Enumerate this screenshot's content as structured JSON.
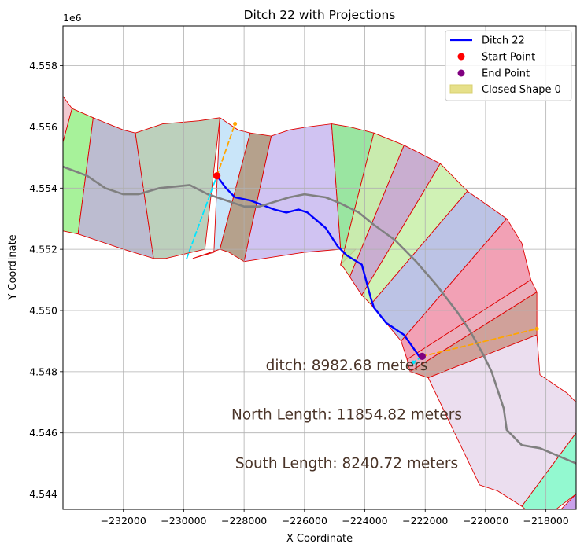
{
  "chart_data": {
    "type": "map-plot",
    "title": "Ditch 22 with Projections",
    "xlabel": "X Coordinate",
    "ylabel": "Y Coordinate",
    "y_offset_text": "1e6",
    "xlim": [
      -234000,
      -217000
    ],
    "ylim": [
      4543500,
      4559300
    ],
    "grid": true,
    "x_ticks": [
      -232000,
      -230000,
      -228000,
      -226000,
      -224000,
      -222000,
      -220000,
      -218000
    ],
    "x_tick_labels": [
      "−232000",
      "−230000",
      "−228000",
      "−226000",
      "−224000",
      "−222000",
      "−220000",
      "−218000"
    ],
    "y_ticks": [
      4544000,
      4546000,
      4548000,
      4550000,
      4552000,
      4554000,
      4556000,
      4558000
    ],
    "y_tick_labels": [
      "4.544",
      "4.546",
      "4.548",
      "4.550",
      "4.552",
      "4.554",
      "4.556",
      "4.558"
    ],
    "legend": {
      "placement": "top-right",
      "entries": [
        {
          "label": "Ditch 22",
          "kind": "line",
          "color": "#0000ff"
        },
        {
          "label": "Start Point",
          "kind": "dot",
          "color": "#ff0000"
        },
        {
          "label": "End Point",
          "kind": "dot",
          "color": "#800080"
        },
        {
          "label": "Closed Shape 0",
          "kind": "patch",
          "color": "#e6e08a"
        }
      ]
    },
    "annotations": [
      {
        "text": "ditch: 8982.68 meters",
        "x": -224600,
        "y": 4548200
      },
      {
        "text": "North Length: 11854.82 meters",
        "x": -224600,
        "y": 4546600
      },
      {
        "text": "South Length: 8240.72 meters",
        "x": -224600,
        "y": 4545000
      }
    ],
    "polygons": [
      {
        "color": "#f0c0c8",
        "points": [
          [
            -234000,
            4557000
          ],
          [
            -233700,
            4556600
          ],
          [
            -234000,
            4555500
          ]
        ]
      },
      {
        "color": "#98f088",
        "points": [
          [
            -233700,
            4556600
          ],
          [
            -233000,
            4556300
          ],
          [
            -233500,
            4552500
          ],
          [
            -234000,
            4552600
          ],
          [
            -234000,
            4555500
          ]
        ]
      },
      {
        "color": "#b0b0c8",
        "points": [
          [
            -233000,
            4556300
          ],
          [
            -232500,
            4556100
          ],
          [
            -232000,
            4555900
          ],
          [
            -231600,
            4555800
          ],
          [
            -231000,
            4551700
          ],
          [
            -232000,
            4552000
          ],
          [
            -233500,
            4552500
          ]
        ]
      },
      {
        "color": "#b0c8b0",
        "points": [
          [
            -231600,
            4555800
          ],
          [
            -230700,
            4556100
          ],
          [
            -229500,
            4556200
          ],
          [
            -228800,
            4556300
          ],
          [
            -229300,
            4552000
          ],
          [
            -230600,
            4551700
          ],
          [
            -231000,
            4551700
          ]
        ]
      },
      {
        "color": "#c0e0f8",
        "points": [
          [
            -228800,
            4556300
          ],
          [
            -228200,
            4555900
          ],
          [
            -227800,
            4555800
          ],
          [
            -228800,
            4552000
          ],
          [
            -229700,
            4551700
          ],
          [
            -229000,
            4551900
          ]
        ]
      },
      {
        "color": "#a89078",
        "points": [
          [
            -227800,
            4555800
          ],
          [
            -227100,
            4555700
          ],
          [
            -228000,
            4551600
          ],
          [
            -228500,
            4551900
          ],
          [
            -228800,
            4552000
          ]
        ]
      },
      {
        "color": "#c8b8f0",
        "points": [
          [
            -227100,
            4555700
          ],
          [
            -226500,
            4555900
          ],
          [
            -225900,
            4556000
          ],
          [
            -225100,
            4556100
          ],
          [
            -224800,
            4552000
          ],
          [
            -226000,
            4551900
          ],
          [
            -228000,
            4551600
          ]
        ]
      },
      {
        "color": "#88e090",
        "points": [
          [
            -225100,
            4556100
          ],
          [
            -224500,
            4556000
          ],
          [
            -223700,
            4555800
          ],
          [
            -224800,
            4551500
          ],
          [
            -224300,
            4552000
          ],
          [
            -224800,
            4552000
          ]
        ]
      },
      {
        "color": "#c0e8a0",
        "points": [
          [
            -223700,
            4555800
          ],
          [
            -222700,
            4555400
          ],
          [
            -224500,
            4551100
          ],
          [
            -224700,
            4551400
          ],
          [
            -224800,
            4551500
          ]
        ]
      },
      {
        "color": "#c0a0c8",
        "points": [
          [
            -222700,
            4555400
          ],
          [
            -221500,
            4554800
          ],
          [
            -224100,
            4550500
          ],
          [
            -224300,
            4550800
          ],
          [
            -224500,
            4551100
          ]
        ]
      },
      {
        "color": "#c8f0a8",
        "points": [
          [
            -221500,
            4554800
          ],
          [
            -220600,
            4553900
          ],
          [
            -223800,
            4550200
          ],
          [
            -224100,
            4550500
          ]
        ]
      },
      {
        "color": "#b0b8e0",
        "points": [
          [
            -220600,
            4553900
          ],
          [
            -219300,
            4553000
          ],
          [
            -222800,
            4549000
          ],
          [
            -223800,
            4550200
          ]
        ]
      },
      {
        "color": "#f090a8",
        "points": [
          [
            -219300,
            4553000
          ],
          [
            -218800,
            4552200
          ],
          [
            -218500,
            4551000
          ],
          [
            -222600,
            4548400
          ],
          [
            -222800,
            4549000
          ]
        ]
      },
      {
        "color": "#e8a0b0",
        "points": [
          [
            -218500,
            4551000
          ],
          [
            -218300,
            4550600
          ],
          [
            -222500,
            4548000
          ],
          [
            -222600,
            4548400
          ]
        ]
      },
      {
        "color": "#c89088",
        "points": [
          [
            -218300,
            4550600
          ],
          [
            -218300,
            4549200
          ],
          [
            -221900,
            4547800
          ],
          [
            -222500,
            4548000
          ]
        ]
      },
      {
        "color": "#e8d8ec",
        "points": [
          [
            -218300,
            4549200
          ],
          [
            -218200,
            4547900
          ],
          [
            -217300,
            4547300
          ],
          [
            -217000,
            4547000
          ],
          [
            -217000,
            4546000
          ],
          [
            -218800,
            4543600
          ],
          [
            -219600,
            4544100
          ],
          [
            -220200,
            4544300
          ],
          [
            -221900,
            4547800
          ]
        ]
      },
      {
        "color": "#80f8c8",
        "points": [
          [
            -217000,
            4546000
          ],
          [
            -217000,
            4544000
          ],
          [
            -218200,
            4543100
          ],
          [
            -218800,
            4543600
          ]
        ]
      },
      {
        "color": "#c090e8",
        "points": [
          [
            -217000,
            4544000
          ],
          [
            -217000,
            4543500
          ],
          [
            -217500,
            4543500
          ]
        ]
      }
    ],
    "series": [
      {
        "name": "Ditch 22",
        "color": "#0000ff",
        "x": [
          -228900,
          -228600,
          -228300,
          -227800,
          -227000,
          -226600,
          -226200,
          -225900,
          -225300,
          -224900,
          -224600,
          -224100,
          -223800,
          -223700,
          -223300,
          -222700,
          -222200
        ],
        "y": [
          4554400,
          4554000,
          4553700,
          4553600,
          4553300,
          4553200,
          4553300,
          4553200,
          4552700,
          4552100,
          4551800,
          4551500,
          4550400,
          4550100,
          4549600,
          4549200,
          4548500
        ]
      },
      {
        "name": "",
        "color": "#808080",
        "x": [
          -234000,
          -233200,
          -232600,
          -232000,
          -231500,
          -230800,
          -229800,
          -229200,
          -228600,
          -228000,
          -227500,
          -226500,
          -226000,
          -225300,
          -224800,
          -224200,
          -223700,
          -223000,
          -222300,
          -221600,
          -220900,
          -220500,
          -220100,
          -219800,
          -219600,
          -219400,
          -219300,
          -218800,
          -218200,
          -217000
        ],
        "y": [
          4554700,
          4554400,
          4554000,
          4553800,
          4553800,
          4554000,
          4554100,
          4553800,
          4553600,
          4553400,
          4553400,
          4553700,
          4553800,
          4553700,
          4553500,
          4553200,
          4552800,
          4552300,
          4551600,
          4550800,
          4549900,
          4549300,
          4548600,
          4548000,
          4547400,
          4546800,
          4546100,
          4545600,
          4545500,
          4545000
        ]
      },
      {
        "name": "",
        "color": "#00e5ff",
        "dashed": true,
        "x": [
          -229900,
          -228900
        ],
        "y": [
          4551700,
          4554400
        ]
      },
      {
        "name": "",
        "color": "#ffa500",
        "dashed": true,
        "x": [
          -228900,
          -228300
        ],
        "y": [
          4554400,
          4556100
        ]
      },
      {
        "name": "",
        "color": "#ffa500",
        "dashed": true,
        "x": [
          -222100,
          -218300
        ],
        "y": [
          4548500,
          4549400
        ]
      },
      {
        "name": "",
        "color": "#00e5ff",
        "dashed": true,
        "x": [
          -222100,
          -222400
        ],
        "y": [
          4548500,
          4548300
        ]
      }
    ],
    "points": [
      {
        "label": "Start Point",
        "x": -228900,
        "y": 4554400,
        "color": "#ff0000"
      },
      {
        "label": "End Point",
        "x": -222100,
        "y": 4548500,
        "color": "#800080"
      }
    ]
  }
}
